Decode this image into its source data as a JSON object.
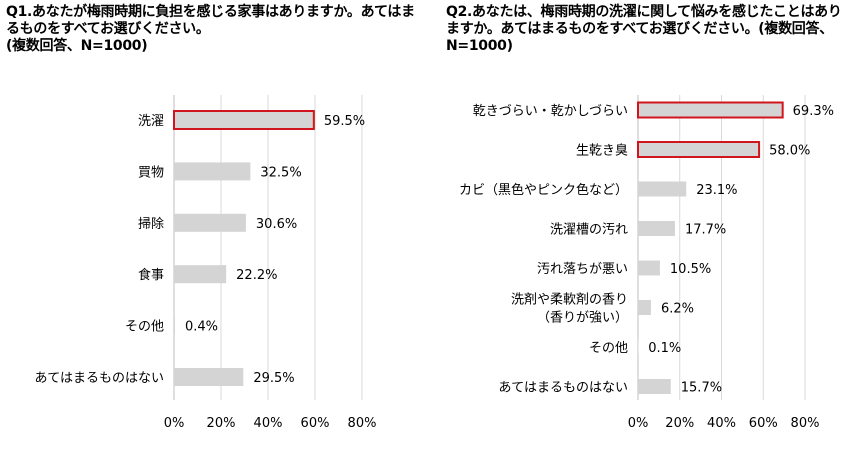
{
  "chart_data": [
    {
      "type": "bar",
      "orientation": "horizontal",
      "title": "Q1.あなたが梅雨時期に負担を感じる家事はありますか。あてはまるものをすべてお選びください。\n(複数回答、N=1000)",
      "categories": [
        "洗濯",
        "買物",
        "掃除",
        "食事",
        "その他",
        "あてはまるものはない"
      ],
      "values": [
        59.5,
        32.5,
        30.6,
        22.2,
        0.4,
        29.5
      ],
      "value_labels": [
        "59.5%",
        "32.5%",
        "30.6%",
        "22.2%",
        "0.4%",
        "29.5%"
      ],
      "highlighted": [
        true,
        false,
        false,
        false,
        false,
        false
      ],
      "x_ticks": [
        "0%",
        "20%",
        "40%",
        "60%",
        "80%"
      ],
      "xlim": [
        0,
        80
      ],
      "grid": true,
      "colors": {
        "bar": "#d4d4d4",
        "highlight_border": "#d0161c",
        "grid": "#d9d9d9"
      }
    },
    {
      "type": "bar",
      "orientation": "horizontal",
      "title": "Q2.あなたは、梅雨時期の洗濯に関して悩みを感じたことはありますか。あてはまるものをすべてお選びください。(複数回答、N=1000)",
      "categories": [
        "乾きづらい・乾かしづらい",
        "生乾き臭",
        "カビ（黒色やピンク色など）",
        "洗濯槽の汚れ",
        "汚れ落ちが悪い",
        "洗剤や柔軟剤の香り\n（香りが強い）",
        "その他",
        "あてはまるものはない"
      ],
      "values": [
        69.3,
        58.0,
        23.1,
        17.7,
        10.5,
        6.2,
        0.1,
        15.7
      ],
      "value_labels": [
        "69.3%",
        "58.0%",
        "23.1%",
        "17.7%",
        "10.5%",
        "6.2%",
        "0.1%",
        "15.7%"
      ],
      "highlighted": [
        true,
        true,
        false,
        false,
        false,
        false,
        false,
        false
      ],
      "x_ticks": [
        "0%",
        "20%",
        "40%",
        "60%",
        "80%"
      ],
      "xlim": [
        0,
        80
      ],
      "grid": true,
      "colors": {
        "bar": "#d4d4d4",
        "highlight_border": "#d0161c",
        "grid": "#d9d9d9"
      }
    }
  ]
}
